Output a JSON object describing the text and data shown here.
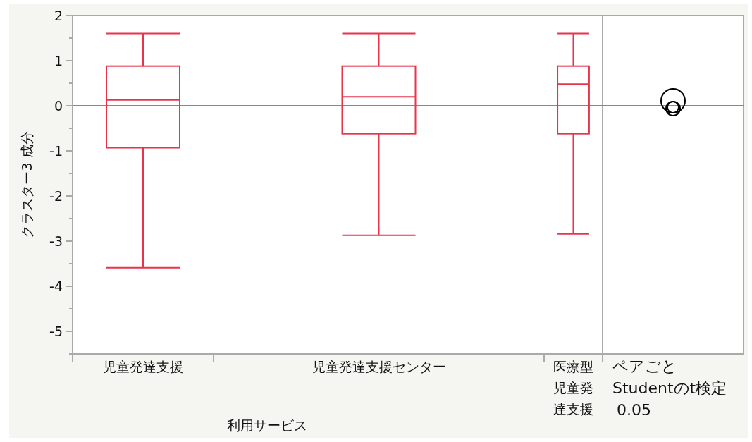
{
  "chart_data": {
    "type": "box",
    "xlabel": "利用サービス",
    "ylabel": "クラスター3 成分",
    "categories": [
      "児童発達支援",
      "児童発達支援センター",
      "医療型児童発達支援"
    ],
    "series": [
      {
        "color": "#e8334a",
        "boxes": [
          {
            "low": -3.59,
            "q1": -0.93,
            "median": 0.13,
            "q3": 0.88,
            "high": 1.6
          },
          {
            "low": -2.87,
            "q1": -0.62,
            "median": 0.2,
            "q3": 0.88,
            "high": 1.6
          },
          {
            "low": -2.84,
            "q1": -0.62,
            "median": 0.48,
            "q3": 0.88,
            "high": 1.6
          }
        ]
      }
    ],
    "ylim": [
      -5.5,
      2
    ],
    "yticks": [
      -5,
      -4,
      -3,
      -2,
      -1,
      0,
      1,
      2
    ],
    "ref_lines": [
      {
        "axis": "y",
        "value": 0,
        "color": "#888888"
      }
    ],
    "annotations": [
      "ペアごと Studentのt検定 0.05"
    ]
  }
}
